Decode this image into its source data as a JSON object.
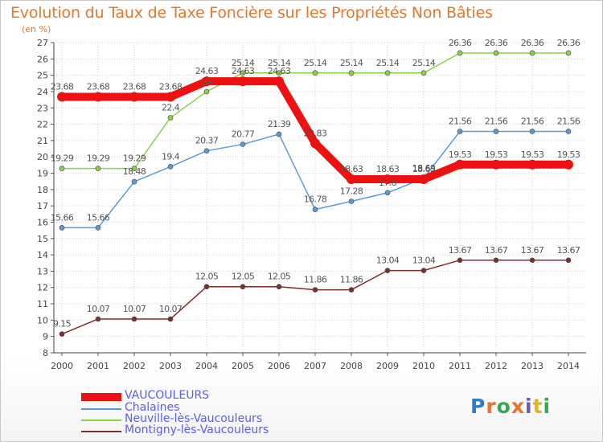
{
  "title": "Evolution du Taux de Taxe Foncière sur les Propriétés Non Bâties",
  "subtitle": "(en %)",
  "logo": {
    "text": "Proxiti",
    "letter_colors": [
      "#2c7fc4",
      "#e8742a",
      "#34a853",
      "#e8742a",
      "#6b5bb0",
      "#e1b521",
      "#34a853"
    ]
  },
  "chart_data": {
    "type": "line",
    "title": "Evolution du Taux de Taxe Foncière sur les Propriétés Non Bâties",
    "ylabel": "(en %)",
    "x": [
      "2000",
      "2001",
      "2002",
      "2003",
      "2004",
      "2005",
      "2006",
      "2007",
      "2008",
      "2009",
      "2010",
      "2011",
      "2012",
      "2013",
      "2014"
    ],
    "ylim": [
      8,
      27
    ],
    "yticks": [
      "8",
      "9",
      "10",
      "11",
      "12",
      "13",
      "14",
      "15",
      "16",
      "17",
      "18",
      "19",
      "20",
      "21",
      "22",
      "23",
      "24",
      "25",
      "26",
      "27"
    ],
    "grid": true,
    "legend_position": "bottom-left",
    "series": [
      {
        "name": "VAUCOULEURS",
        "color": "#ee1111",
        "values": [
          23.68,
          23.68,
          23.68,
          23.68,
          24.63,
          24.63,
          24.63,
          20.83,
          18.63,
          18.63,
          18.63,
          19.53,
          19.53,
          19.53,
          19.53
        ],
        "labels": [
          "23.68",
          "23.68",
          "23.68",
          "23.68",
          "24.63",
          "24.63",
          "24.63",
          "20.83",
          "18.63",
          "18.63",
          "18.63",
          "19.53",
          "19.53",
          "19.53",
          "19.53"
        ]
      },
      {
        "name": "Chalaines",
        "color": "#5b9bd5",
        "values": [
          15.66,
          15.66,
          18.48,
          19.4,
          20.37,
          20.77,
          21.39,
          16.78,
          17.28,
          17.8,
          18.69,
          21.56,
          21.56,
          21.56,
          21.56
        ],
        "labels": [
          "15.66",
          "15.66",
          "18.48",
          "19.4",
          "20.37",
          "20.77",
          "21.39",
          "16.78",
          "17.28",
          "17.8",
          "18.69",
          "21.56",
          "21.56",
          "21.56",
          "21.56"
        ]
      },
      {
        "name": "Neuville-lès-Vaucouleurs",
        "color": "#8bd14a",
        "values": [
          19.29,
          19.29,
          19.29,
          22.4,
          24.0,
          25.14,
          25.14,
          25.14,
          25.14,
          25.14,
          25.14,
          26.36,
          26.36,
          26.36,
          26.36
        ],
        "labels": [
          "19.29",
          "19.29",
          "19.29",
          "22.4",
          "24",
          "25.14",
          "25.14",
          "25.14",
          "25.14",
          "25.14",
          "25.14",
          "26.36",
          "26.36",
          "26.36",
          "26.36"
        ]
      },
      {
        "name": "Montigny-lès-Vaucouleurs",
        "color": "#7b2e2e",
        "values": [
          9.15,
          10.07,
          10.07,
          10.07,
          12.05,
          12.05,
          12.05,
          11.86,
          11.86,
          13.04,
          13.04,
          13.67,
          13.67,
          13.67,
          13.67
        ],
        "labels": [
          "9.15",
          "10.07",
          "10.07",
          "10.07",
          "12.05",
          "12.05",
          "12.05",
          "11.86",
          "11.86",
          "13.04",
          "13.04",
          "13.67",
          "13.67",
          "13.67",
          "13.67"
        ]
      }
    ]
  },
  "legend": [
    {
      "name": "VAUCOULEURS",
      "color": "#ee1111",
      "text_color": "#5e5ee6"
    },
    {
      "name": "Chalaines",
      "color": "#5b9bd5",
      "text_color": "#5e5ee6"
    },
    {
      "name": "Neuville-lès-Vaucouleurs",
      "color": "#8bd14a",
      "text_color": "#5e5ee6"
    },
    {
      "name": "Montigny-lès-Vaucouleurs",
      "color": "#7b2e2e",
      "text_color": "#5e5ee6"
    }
  ]
}
